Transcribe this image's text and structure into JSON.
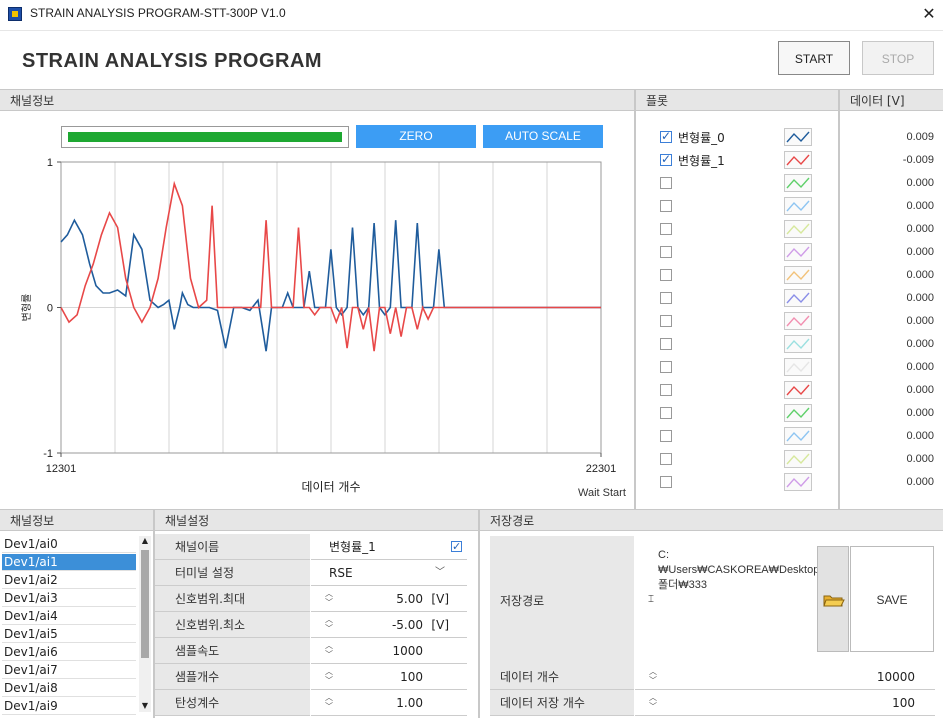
{
  "window": {
    "title": "STRAIN ANALYSIS PROGRAM-STT-300P V1.0",
    "close_glyph": "✕"
  },
  "header": {
    "app_title": "STRAIN ANALYSIS PROGRAM",
    "start_label": "START",
    "stop_label": "STOP"
  },
  "sections": {
    "channel_info": "채널정보",
    "plot": "플롯",
    "data_v": "데이터 [V]",
    "channel_info_bottom": "채널정보",
    "channel_settings": "채널설정",
    "save_path": "저장경로"
  },
  "controls": {
    "zero_label": "ZERO",
    "autoscale_label": "AUTO SCALE",
    "progress": 1.0,
    "status": "Wait Start"
  },
  "chart_data": {
    "type": "line",
    "xlabel": "데이터 개수",
    "ylabel": "변형률",
    "xlim": [
      12301,
      22301
    ],
    "ylim": [
      -1,
      1
    ],
    "x_tick_labels": [
      "12301",
      "22301"
    ],
    "y_tick_labels": [
      "1",
      "0",
      "-1"
    ],
    "series": [
      {
        "name": "변형률_0",
        "color": "#1f5c9c",
        "x": [
          12301,
          12420,
          12550,
          12700,
          12830,
          12950,
          13080,
          13200,
          13350,
          13500,
          13650,
          13800,
          13950,
          14100,
          14200,
          14300,
          14400,
          14500,
          14550,
          14650,
          14750,
          14850,
          14950,
          15050,
          15200,
          15350,
          15500,
          15650,
          15800,
          15950,
          16100,
          16200,
          16300,
          16400,
          16500,
          16600,
          16700,
          16800,
          16900,
          17000,
          17100,
          17200,
          17300,
          17400,
          17500,
          17600,
          17700,
          17800,
          17900,
          18000,
          18100,
          18200,
          18300,
          18400,
          18500,
          18600,
          18700,
          18800,
          18900,
          19000,
          19100,
          19200,
          19300,
          19400,
          19500,
          19600,
          19700,
          19800,
          19900,
          20000,
          22301
        ],
        "y": [
          0.45,
          0.5,
          0.6,
          0.5,
          0.3,
          0.15,
          0.1,
          0.1,
          0.12,
          0.08,
          0.5,
          0.4,
          0.05,
          0.0,
          0.02,
          0.05,
          -0.15,
          0.0,
          0.1,
          0.02,
          0.0,
          0.0,
          0.0,
          0.0,
          -0.02,
          -0.28,
          0.0,
          0.0,
          -0.02,
          0.05,
          -0.3,
          0.0,
          0.0,
          0.0,
          0.1,
          0.0,
          0.0,
          0.0,
          0.25,
          0.0,
          0.0,
          0.0,
          0.4,
          0.0,
          -0.05,
          0.0,
          0.55,
          0.0,
          -0.05,
          0.0,
          0.58,
          0.0,
          -0.05,
          0.0,
          0.6,
          0.0,
          0.0,
          0.0,
          0.58,
          0.0,
          0.0,
          0.0,
          0.4,
          0.0,
          0.0,
          0.0,
          0.0,
          0.0,
          0.0,
          0.0,
          0.0
        ]
      },
      {
        "name": "변형률_1",
        "color": "#e84848",
        "x": [
          12301,
          12450,
          12600,
          12750,
          12900,
          13050,
          13200,
          13350,
          13500,
          13650,
          13800,
          13950,
          14100,
          14250,
          14400,
          14550,
          14700,
          14850,
          15000,
          15100,
          15200,
          15300,
          15400,
          15500,
          15600,
          15700,
          15800,
          15900,
          16000,
          16100,
          16200,
          16300,
          16400,
          16500,
          16600,
          16700,
          16800,
          16900,
          17000,
          17100,
          17200,
          17300,
          17400,
          17500,
          17600,
          17700,
          17800,
          17900,
          18000,
          18100,
          18200,
          18300,
          18400,
          18500,
          18600,
          18700,
          18800,
          18900,
          19000,
          19100,
          19200,
          19300,
          19400,
          19500,
          19600,
          19700,
          19800,
          19900,
          20000,
          22301
        ],
        "y": [
          0.0,
          -0.1,
          -0.05,
          0.15,
          0.3,
          0.5,
          0.65,
          0.55,
          0.2,
          0.0,
          -0.1,
          0.0,
          0.2,
          0.55,
          0.85,
          0.7,
          0.2,
          0.0,
          0.05,
          0.7,
          0.0,
          0.0,
          0.0,
          0.0,
          0.0,
          0.0,
          0.0,
          0.0,
          0.0,
          0.6,
          0.0,
          0.0,
          0.0,
          0.0,
          0.0,
          0.55,
          0.0,
          0.0,
          -0.05,
          0.0,
          0.0,
          0.0,
          -0.1,
          0.0,
          -0.28,
          0.0,
          0.0,
          -0.15,
          0.0,
          -0.3,
          0.0,
          0.0,
          -0.18,
          0.0,
          -0.2,
          0.0,
          0.0,
          -0.15,
          0.0,
          -0.08,
          0.0,
          0.0,
          0.0,
          0.0,
          0.0,
          0.0,
          0.0,
          0.0,
          0.0,
          0.0
        ]
      }
    ]
  },
  "plot_legend": [
    {
      "name": "변형률_0",
      "checked": true,
      "color": "#1f5c9c"
    },
    {
      "name": "변형률_1",
      "checked": true,
      "color": "#e84848"
    },
    {
      "name": "",
      "checked": false,
      "color": "#5fd06a"
    },
    {
      "name": "",
      "checked": false,
      "color": "#8ec5f2"
    },
    {
      "name": "",
      "checked": false,
      "color": "#d6e89c"
    },
    {
      "name": "",
      "checked": false,
      "color": "#cf9ce8"
    },
    {
      "name": "",
      "checked": false,
      "color": "#f2c27a"
    },
    {
      "name": "",
      "checked": false,
      "color": "#8a8ee8"
    },
    {
      "name": "",
      "checked": false,
      "color": "#f28eb0"
    },
    {
      "name": "",
      "checked": false,
      "color": "#9ce0e0"
    },
    {
      "name": "",
      "checked": false,
      "color": "#e6e6e6"
    },
    {
      "name": "",
      "checked": false,
      "color": "#e84848"
    },
    {
      "name": "",
      "checked": false,
      "color": "#5fd06a"
    },
    {
      "name": "",
      "checked": false,
      "color": "#8ec5f2"
    },
    {
      "name": "",
      "checked": false,
      "color": "#d6e89c"
    },
    {
      "name": "",
      "checked": false,
      "color": "#cf9ce8"
    }
  ],
  "data_values": [
    "0.009",
    "-0.009",
    "0.000",
    "0.000",
    "0.000",
    "0.000",
    "0.000",
    "0.000",
    "0.000",
    "0.000",
    "0.000",
    "0.000",
    "0.000",
    "0.000",
    "0.000",
    "0.000"
  ],
  "channel_list": {
    "items": [
      "Dev1/ai0",
      "Dev1/ai1",
      "Dev1/ai2",
      "Dev1/ai3",
      "Dev1/ai4",
      "Dev1/ai5",
      "Dev1/ai6",
      "Dev1/ai7",
      "Dev1/ai8",
      "Dev1/ai9"
    ],
    "selected_index": 1
  },
  "channel_settings": {
    "rows": [
      {
        "label": "채널이름",
        "value": "변형률_1",
        "unit": ""
      },
      {
        "label": "터미널 설정",
        "value": "RSE",
        "unit": ""
      },
      {
        "label": "신호범위.최대",
        "value": "5.00",
        "unit": "[V]"
      },
      {
        "label": "신호범위.최소",
        "value": "-5.00",
        "unit": "[V]"
      },
      {
        "label": "샘플속도",
        "value": "1000",
        "unit": ""
      },
      {
        "label": "샘플개수",
        "value": "100",
        "unit": ""
      },
      {
        "label": "탄성계수",
        "value": "1.00",
        "unit": ""
      }
    ]
  },
  "save": {
    "path_label": "저장경로",
    "path": "C:₩Users₩CASKOREA₩Desktop₩새 폴더₩333",
    "save_label": "SAVE",
    "data_count_label": "데이터 개수",
    "data_count": "10000",
    "save_count_label": "데이터 저장 개수",
    "save_count": "100"
  }
}
